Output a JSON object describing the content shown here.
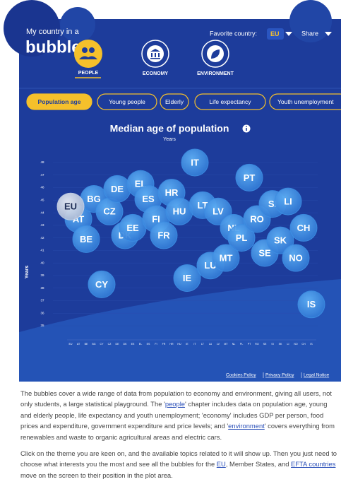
{
  "header": {
    "brand_line1": "My country in a",
    "brand_line2": "bubble",
    "favorite_label": "Favorite country:",
    "favorite": "EU",
    "share": "Share"
  },
  "nav": [
    "PEOPLE",
    "ECONOMY",
    "ENVIRONMENT"
  ],
  "tabs": [
    "Population age",
    "Young people",
    "Elderly",
    "Life expectancy",
    "Youth unemployment"
  ],
  "chart_data": {
    "type": "bubble",
    "title": "Median age of population",
    "subtitle": "Years",
    "y_label": "Years",
    "categories": [
      "EU",
      "AT",
      "BE",
      "BG",
      "CY",
      "CZ",
      "DE",
      "DK",
      "EE",
      "EL",
      "ES",
      "FI",
      "FR",
      "HR",
      "HU",
      "IE",
      "IT",
      "LT",
      "LU",
      "LV",
      "MT",
      "NL",
      "PL",
      "PT",
      "RO",
      "SE",
      "SI",
      "SK",
      "LI",
      "NO",
      "CH",
      "IS"
    ],
    "values": [
      44.5,
      43.5,
      41.9,
      45.1,
      38.3,
      44.1,
      45.9,
      42.2,
      42.8,
      46.3,
      45.1,
      43.5,
      42.2,
      45.6,
      44.1,
      38.8,
      48.0,
      44.6,
      39.8,
      44.1,
      40.4,
      42.8,
      42.0,
      46.8,
      43.5,
      40.8,
      44.7,
      41.8,
      44.9,
      40.4,
      42.8,
      36.7
    ],
    "color": "#3d8fe3",
    "highlight_color": "#c9d3e6",
    "ylim": [
      35,
      48
    ],
    "yticks": [
      35,
      36,
      37,
      38,
      39,
      40,
      41,
      42,
      43,
      44,
      45,
      46,
      47,
      48
    ]
  },
  "footer": [
    "Cookies Policy",
    "Privacy Policy",
    "Legal Notice"
  ],
  "paragraphs": [
    [
      "The bubbles cover a wide range of data from population to economy and environment, giving all users, not only students, a large statistical playground. The '",
      {
        "link": "people"
      },
      "' chapter includes data on population age, young and elderly people, life expectancy and youth unemployment; 'economy' includes GDP per person, food prices and expenditure, government expenditure and price levels; and '",
      {
        "link": "environment"
      },
      "' covers everything from renewables and waste to organic agricultural areas and electric cars."
    ],
    [
      "Click on the theme you are keen on, and the available topics related to it will show up. Then you just need to choose what interests you the most and see all the bubbles for the ",
      {
        "link": "EU"
      },
      ", Member States, and ",
      {
        "link": "EFTA countries"
      },
      " move on the screen to their position in the plot area."
    ]
  ]
}
